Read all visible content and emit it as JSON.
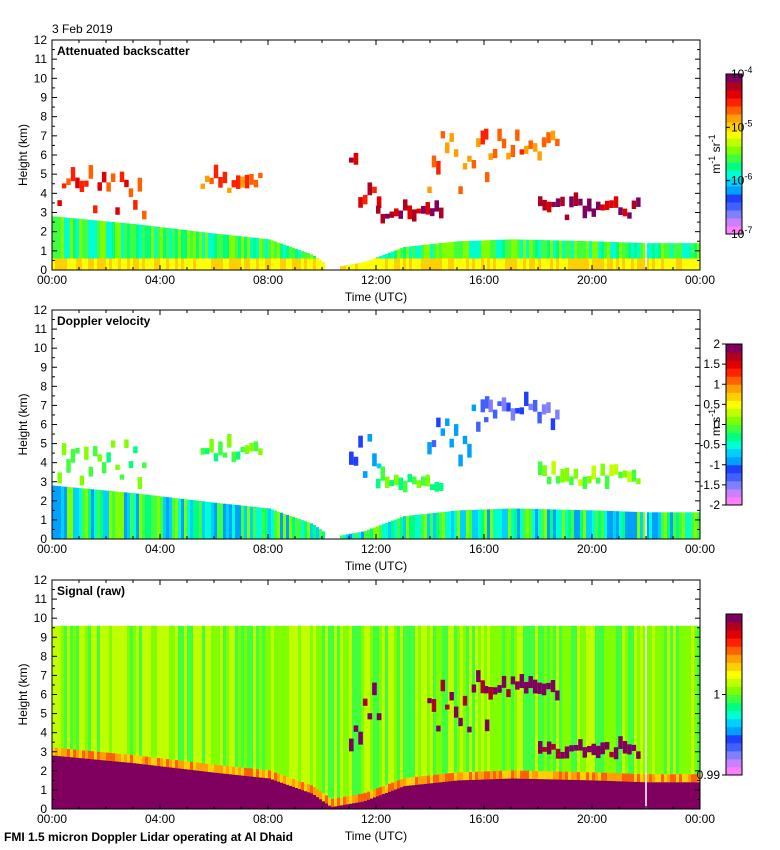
{
  "date": "3 Feb 2019",
  "footer": "FMI 1.5 micron Doppler Lidar operating at Al Dhaid",
  "colorscale": [
    "#ff80ff",
    "#cc80ff",
    "#8080ff",
    "#4060ff",
    "#2040ff",
    "#00a0ff",
    "#00d0ff",
    "#00ffd0",
    "#00ff80",
    "#40ff40",
    "#80ff00",
    "#c0ff00",
    "#ffff00",
    "#ffd000",
    "#ffa000",
    "#ff6000",
    "#ff2000",
    "#e00000",
    "#b00020",
    "#800060"
  ],
  "chart_data": [
    {
      "type": "heatmap",
      "title": "Attenuated backscatter",
      "xlabel": "Time (UTC)",
      "ylabel": "Height (km)",
      "x_ticks": [
        "00:00",
        "04:00",
        "08:00",
        "12:00",
        "16:00",
        "20:00",
        "00:00"
      ],
      "y_ticks": [
        "0",
        "1",
        "2",
        "3",
        "4",
        "5",
        "6",
        "7",
        "8",
        "9",
        "10",
        "11",
        "12"
      ],
      "ylim": [
        0,
        12
      ],
      "xlim_hours": [
        0,
        24
      ],
      "colorbar": {
        "unit_main": "m",
        "unit_sup1": "-1",
        "unit_mid": " sr",
        "unit_sup2": "-1",
        "scale": "log",
        "range": [
          1e-07,
          0.0001
        ],
        "ticks": [
          {
            "base": "10",
            "exp": "-7",
            "value": 1e-07
          },
          {
            "base": "10",
            "exp": "-6",
            "value": 1e-06
          },
          {
            "base": "10",
            "exp": "-5",
            "value": 1e-05
          },
          {
            "base": "10",
            "exp": "-4",
            "value": 0.0001
          }
        ]
      },
      "boundary_layer_top_km": [
        {
          "t": 0,
          "h": 2.8
        },
        {
          "t": 3,
          "h": 2.4
        },
        {
          "t": 6,
          "h": 1.9
        },
        {
          "t": 8,
          "h": 1.6
        },
        {
          "t": 9.6,
          "h": 0.8
        },
        {
          "t": 10.3,
          "h": 0.1
        },
        {
          "t": 11.5,
          "h": 0.4
        },
        {
          "t": 13,
          "h": 1.2
        },
        {
          "t": 15,
          "h": 1.5
        },
        {
          "t": 17,
          "h": 1.6
        },
        {
          "t": 20,
          "h": 1.5
        },
        {
          "t": 22,
          "h": 1.4
        },
        {
          "t": 24,
          "h": 1.4
        }
      ],
      "cloud_features": [
        {
          "t0": 0.2,
          "t1": 3.5,
          "h0": 2.6,
          "h1": 4.8,
          "level": 16
        },
        {
          "t0": 5.5,
          "t1": 7.8,
          "h0": 4.0,
          "h1": 4.8,
          "level": 15
        },
        {
          "t0": 11.0,
          "t1": 12.2,
          "h0": 3.0,
          "h1": 6.4,
          "level": 17
        },
        {
          "t0": 12.0,
          "t1": 14.5,
          "h0": 2.4,
          "h1": 3.2,
          "level": 18
        },
        {
          "t0": 13.9,
          "t1": 16.2,
          "h0": 3.8,
          "h1": 7.6,
          "level": 15
        },
        {
          "t0": 16.0,
          "t1": 18.8,
          "h0": 5.7,
          "h1": 7.0,
          "level": 15
        },
        {
          "t0": 18.0,
          "t1": 21.8,
          "h0": 2.6,
          "h1": 3.4,
          "level": 18
        }
      ]
    },
    {
      "type": "heatmap",
      "title": "Doppler velocity",
      "xlabel": "Time (UTC)",
      "ylabel": "Height (km)",
      "x_ticks": [
        "00:00",
        "04:00",
        "08:00",
        "12:00",
        "16:00",
        "20:00",
        "00:00"
      ],
      "y_ticks": [
        "0",
        "1",
        "2",
        "3",
        "4",
        "5",
        "6",
        "7",
        "8",
        "9",
        "10",
        "11",
        "12"
      ],
      "ylim": [
        0,
        12
      ],
      "xlim_hours": [
        0,
        24
      ],
      "colorbar": {
        "unit_main": "m s",
        "unit_sup1": "-1",
        "scale": "linear",
        "range": [
          -2,
          2
        ],
        "ticks": [
          "-2",
          "-1.5",
          "-1",
          "-0.5",
          "0",
          "0.5",
          "1",
          "1.5",
          "2"
        ]
      },
      "boundary_layer_top_km": [
        {
          "t": 0,
          "h": 2.8
        },
        {
          "t": 3,
          "h": 2.4
        },
        {
          "t": 6,
          "h": 1.9
        },
        {
          "t": 8,
          "h": 1.6
        },
        {
          "t": 9.6,
          "h": 0.8
        },
        {
          "t": 10.3,
          "h": 0.1
        },
        {
          "t": 11.5,
          "h": 0.4
        },
        {
          "t": 13,
          "h": 1.2
        },
        {
          "t": 15,
          "h": 1.5
        },
        {
          "t": 17,
          "h": 1.6
        },
        {
          "t": 20,
          "h": 1.5
        },
        {
          "t": 22,
          "h": 1.4
        },
        {
          "t": 24,
          "h": 1.4
        }
      ],
      "cloud_features": [
        {
          "t0": 0.2,
          "t1": 3.5,
          "h0": 2.6,
          "h1": 4.8,
          "level": 9
        },
        {
          "t0": 5.5,
          "t1": 7.8,
          "h0": 4.0,
          "h1": 4.8,
          "level": 9
        },
        {
          "t0": 11.0,
          "t1": 12.2,
          "h0": 3.0,
          "h1": 6.4,
          "level": 5
        },
        {
          "t0": 12.0,
          "t1": 14.5,
          "h0": 2.4,
          "h1": 3.2,
          "level": 9
        },
        {
          "t0": 13.9,
          "t1": 16.2,
          "h0": 3.8,
          "h1": 7.6,
          "level": 4
        },
        {
          "t0": 16.0,
          "t1": 18.8,
          "h0": 5.7,
          "h1": 7.0,
          "level": 3
        },
        {
          "t0": 18.0,
          "t1": 21.8,
          "h0": 2.6,
          "h1": 3.4,
          "level": 10
        }
      ]
    },
    {
      "type": "heatmap",
      "title": "Signal (raw)",
      "xlabel": "Time (UTC)",
      "ylabel": "Height (km)",
      "x_ticks": [
        "00:00",
        "04:00",
        "08:00",
        "12:00",
        "16:00",
        "20:00",
        "00:00"
      ],
      "y_ticks": [
        "0",
        "1",
        "2",
        "3",
        "4",
        "5",
        "6",
        "7",
        "8",
        "9",
        "10",
        "11",
        "12"
      ],
      "ylim": [
        0,
        12
      ],
      "xlim_hours": [
        0,
        24
      ],
      "data_top_km": 9.6,
      "colorbar": {
        "scale": "linear",
        "range": [
          0.99,
          1.01
        ],
        "ticks": [
          "0.99",
          "1"
        ]
      },
      "boundary_layer_top_km": [
        {
          "t": 0,
          "h": 2.8
        },
        {
          "t": 3,
          "h": 2.4
        },
        {
          "t": 6,
          "h": 1.9
        },
        {
          "t": 8,
          "h": 1.6
        },
        {
          "t": 9.6,
          "h": 0.8
        },
        {
          "t": 10.3,
          "h": 0.1
        },
        {
          "t": 11.5,
          "h": 0.4
        },
        {
          "t": 13,
          "h": 1.2
        },
        {
          "t": 15,
          "h": 1.5
        },
        {
          "t": 17,
          "h": 1.6
        },
        {
          "t": 20,
          "h": 1.5
        },
        {
          "t": 22,
          "h": 1.4
        },
        {
          "t": 24,
          "h": 1.4
        }
      ],
      "cloud_features": [
        {
          "t0": 11.0,
          "t1": 12.2,
          "h0": 3.0,
          "h1": 6.4,
          "level": 19
        },
        {
          "t0": 13.9,
          "t1": 16.2,
          "h0": 4.0,
          "h1": 7.0,
          "level": 19
        },
        {
          "t0": 16.0,
          "t1": 18.8,
          "h0": 5.6,
          "h1": 6.6,
          "level": 19
        },
        {
          "t0": 18.0,
          "t1": 21.8,
          "h0": 2.6,
          "h1": 3.2,
          "level": 19
        }
      ]
    }
  ]
}
